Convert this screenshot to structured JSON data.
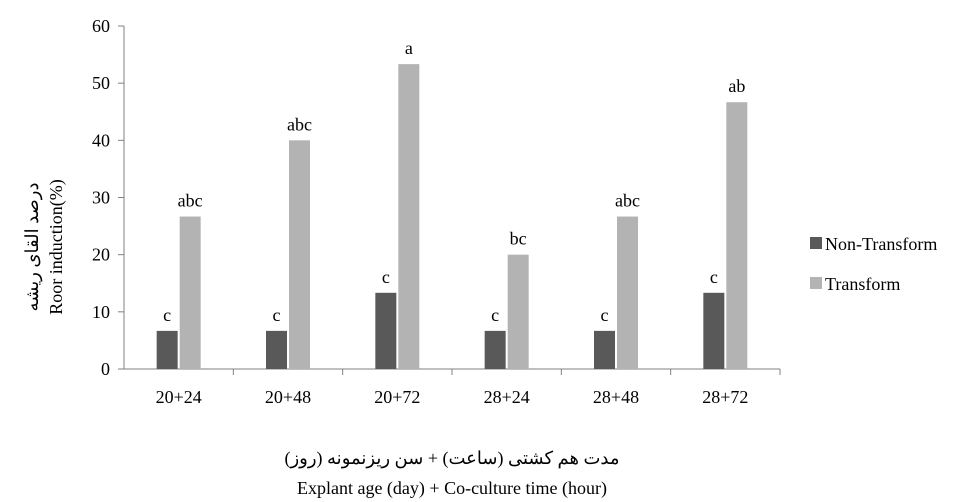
{
  "chart_data": {
    "type": "bar",
    "categories": [
      "20+24",
      "20+48",
      "20+72",
      "28+24",
      "28+48",
      "28+72"
    ],
    "series": [
      {
        "name": "Non-Transform",
        "color": "#595959",
        "values": [
          6.67,
          6.67,
          13.33,
          6.67,
          6.67,
          13.33
        ],
        "labels": [
          "c",
          "c",
          "c",
          "c",
          "c",
          "c"
        ]
      },
      {
        "name": "Transform",
        "color": "#b3b3b3",
        "values": [
          26.67,
          40,
          53.33,
          20,
          26.67,
          46.67
        ],
        "labels": [
          "abc",
          "abc",
          "a",
          "bc",
          "abc",
          "ab"
        ]
      }
    ],
    "ylim": [
      0,
      60
    ],
    "yticks": [
      "0",
      "10",
      "20",
      "30",
      "40",
      "50",
      "60"
    ],
    "ylabel_fa": "درصد القای ریشه",
    "ylabel": "Roor induction(%)",
    "xlabel_fa": "مدت هم کشتی (ساعت) + سن ریزنمونه (روز)",
    "xlabel": "Explant age (day) + Co-culture time (hour)",
    "grid": false,
    "legend_position": "right"
  }
}
